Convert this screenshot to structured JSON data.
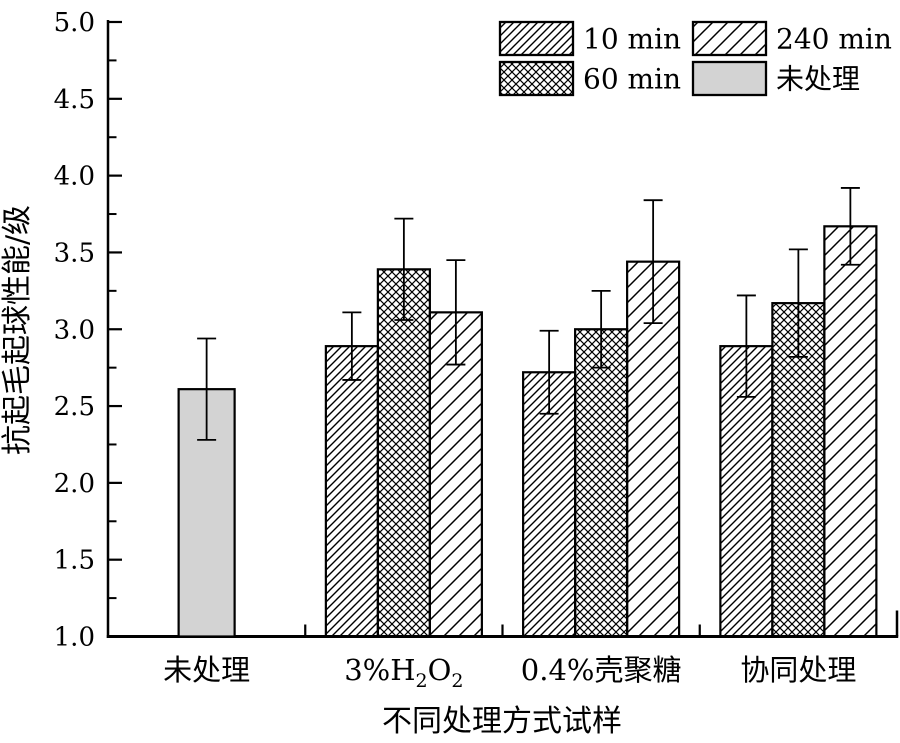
{
  "chart_data": {
    "type": "bar",
    "title": "",
    "xlabel": "不同处理方式试样",
    "ylabel": "抗起毛起球性能/级",
    "ylim": [
      1.0,
      5.0
    ],
    "ytick_step": 0.5,
    "ytick_minor_step": 0.25,
    "ytick_labels": [
      "1.0",
      "1.5",
      "2.0",
      "2.5",
      "3.0",
      "3.5",
      "4.0",
      "4.5",
      "5.0"
    ],
    "grid": false,
    "legend_position": "top-right-inside",
    "categories": [
      {
        "label": "未处理",
        "parts": [
          {
            "t": "未处理"
          }
        ]
      },
      {
        "label": "3%H2O2",
        "parts": [
          {
            "t": "3%H"
          },
          {
            "t": "2",
            "sub": true
          },
          {
            "t": "O"
          },
          {
            "t": "2",
            "sub": true
          }
        ]
      },
      {
        "label": "0.4%壳聚糖",
        "parts": [
          {
            "t": "0.4%壳聚糖"
          }
        ]
      },
      {
        "label": "协同处理",
        "parts": [
          {
            "t": "协同处理"
          }
        ]
      }
    ],
    "series": [
      {
        "name": "10 min",
        "pattern": "hatch-dense",
        "values": [
          null,
          2.89,
          2.72,
          2.89
        ],
        "errors": [
          null,
          0.22,
          0.27,
          0.33
        ]
      },
      {
        "name": "60 min",
        "pattern": "crosshatch",
        "values": [
          null,
          3.39,
          3.0,
          3.17
        ],
        "errors": [
          null,
          0.33,
          0.25,
          0.35
        ]
      },
      {
        "name": "240 min",
        "pattern": "hatch-sparse",
        "values": [
          null,
          3.11,
          3.44,
          3.67
        ],
        "errors": [
          null,
          0.34,
          0.4,
          0.25
        ]
      },
      {
        "name": "未处理",
        "pattern": "solid-gray",
        "values": [
          2.61,
          null,
          null,
          null
        ],
        "errors": [
          0.33,
          null,
          null,
          null
        ]
      }
    ],
    "legend_rows": [
      [
        "10 min",
        "240 min"
      ],
      [
        "60 min",
        "未处理"
      ]
    ],
    "colors": {
      "stroke": "#000000",
      "untreated_fill": "#d3d3d3",
      "text": "#000000",
      "background": "#ffffff"
    }
  }
}
